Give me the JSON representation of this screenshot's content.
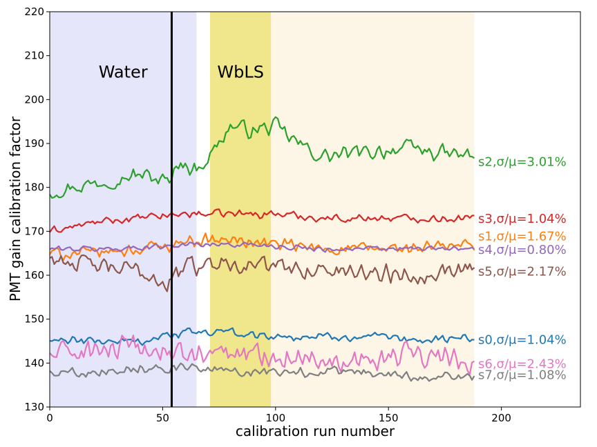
{
  "chart_data": {
    "type": "line",
    "title": "",
    "xlabel": "calibration run number",
    "ylabel": "PMT gain calibration factor",
    "xlim": [
      0,
      235
    ],
    "ylim": [
      130,
      220
    ],
    "xticks": [
      "0",
      "50",
      "100",
      "150",
      "200"
    ],
    "yticks": [
      "130",
      "140",
      "150",
      "160",
      "170",
      "180",
      "190",
      "200",
      "210",
      "220"
    ],
    "grid": false,
    "regions": [
      {
        "label": "Water",
        "x_start": 0,
        "x_end": 65,
        "color": "#e6e6fa"
      },
      {
        "label": "WbLS",
        "x_start": 71,
        "x_end": 98,
        "color": "#f0e68c"
      },
      {
        "label": "",
        "x_start": 98,
        "x_end": 188,
        "color": "#fdf5e6"
      }
    ],
    "vertical_line": {
      "x": 54,
      "color": "#000000"
    },
    "x_points": 189,
    "series": [
      {
        "name": "s2",
        "label": "s2,σ/μ=3.01%",
        "color": "#2ca02c",
        "segments": [
          [
            0,
            179
          ],
          [
            20,
            181
          ],
          [
            40,
            183
          ],
          [
            54,
            181
          ],
          [
            56,
            186
          ],
          [
            65,
            184
          ],
          [
            72,
            188
          ],
          [
            80,
            194
          ],
          [
            90,
            193
          ],
          [
            100,
            194
          ],
          [
            110,
            190
          ],
          [
            120,
            187
          ],
          [
            140,
            188
          ],
          [
            160,
            189
          ],
          [
            170,
            188
          ],
          [
            188,
            187
          ]
        ],
        "noise": 2.2
      },
      {
        "name": "s3",
        "label": "s3,σ/μ=1.04%",
        "color": "#d62728",
        "segments": [
          [
            0,
            170
          ],
          [
            20,
            172
          ],
          [
            40,
            173
          ],
          [
            60,
            174
          ],
          [
            80,
            174
          ],
          [
            100,
            174
          ],
          [
            120,
            173
          ],
          [
            140,
            173
          ],
          [
            160,
            173
          ],
          [
            188,
            173
          ]
        ],
        "noise": 1.1
      },
      {
        "name": "s1",
        "label": "s1,σ/μ=1.67%",
        "color": "#ff7f0e",
        "segments": [
          [
            0,
            165
          ],
          [
            20,
            165
          ],
          [
            40,
            166
          ],
          [
            54,
            167
          ],
          [
            60,
            168
          ],
          [
            80,
            168
          ],
          [
            100,
            167
          ],
          [
            120,
            166
          ],
          [
            140,
            166
          ],
          [
            160,
            166
          ],
          [
            188,
            167
          ]
        ],
        "noise": 1.8
      },
      {
        "name": "s4",
        "label": "s4,σ/μ=0.80%",
        "color": "#9467bd",
        "segments": [
          [
            0,
            166
          ],
          [
            30,
            166
          ],
          [
            60,
            167
          ],
          [
            90,
            167
          ],
          [
            120,
            166
          ],
          [
            150,
            166
          ],
          [
            188,
            166
          ]
        ],
        "noise": 0.8
      },
      {
        "name": "s5",
        "label": "s5,σ/μ=2.17%",
        "color": "#8c564b",
        "segments": [
          [
            0,
            164
          ],
          [
            20,
            162
          ],
          [
            40,
            161
          ],
          [
            52,
            158
          ],
          [
            60,
            162
          ],
          [
            80,
            163
          ],
          [
            100,
            162
          ],
          [
            120,
            161
          ],
          [
            140,
            161
          ],
          [
            160,
            160
          ],
          [
            188,
            162
          ]
        ],
        "noise": 2.6
      },
      {
        "name": "s0",
        "label": "s0,σ/μ=1.04%",
        "color": "#1f77b4",
        "segments": [
          [
            0,
            145
          ],
          [
            20,
            145
          ],
          [
            40,
            145
          ],
          [
            60,
            147
          ],
          [
            80,
            147
          ],
          [
            100,
            146
          ],
          [
            120,
            146
          ],
          [
            140,
            146
          ],
          [
            160,
            145
          ],
          [
            188,
            146
          ]
        ],
        "noise": 1.2
      },
      {
        "name": "s6",
        "label": "s6,σ/μ=2.43%",
        "color": "#e377c2",
        "segments": [
          [
            0,
            142
          ],
          [
            20,
            143
          ],
          [
            40,
            143
          ],
          [
            60,
            142
          ],
          [
            80,
            142
          ],
          [
            100,
            142
          ],
          [
            120,
            141
          ],
          [
            140,
            141
          ],
          [
            160,
            142
          ],
          [
            188,
            140
          ]
        ],
        "noise": 3.4
      },
      {
        "name": "s7",
        "label": "s7,σ/μ=1.08%",
        "color": "#7f7f7f",
        "segments": [
          [
            0,
            138
          ],
          [
            20,
            138
          ],
          [
            40,
            139
          ],
          [
            60,
            139
          ],
          [
            80,
            138
          ],
          [
            100,
            138
          ],
          [
            120,
            138
          ],
          [
            140,
            138
          ],
          [
            160,
            137
          ],
          [
            188,
            137
          ]
        ],
        "noise": 1.3
      }
    ]
  }
}
